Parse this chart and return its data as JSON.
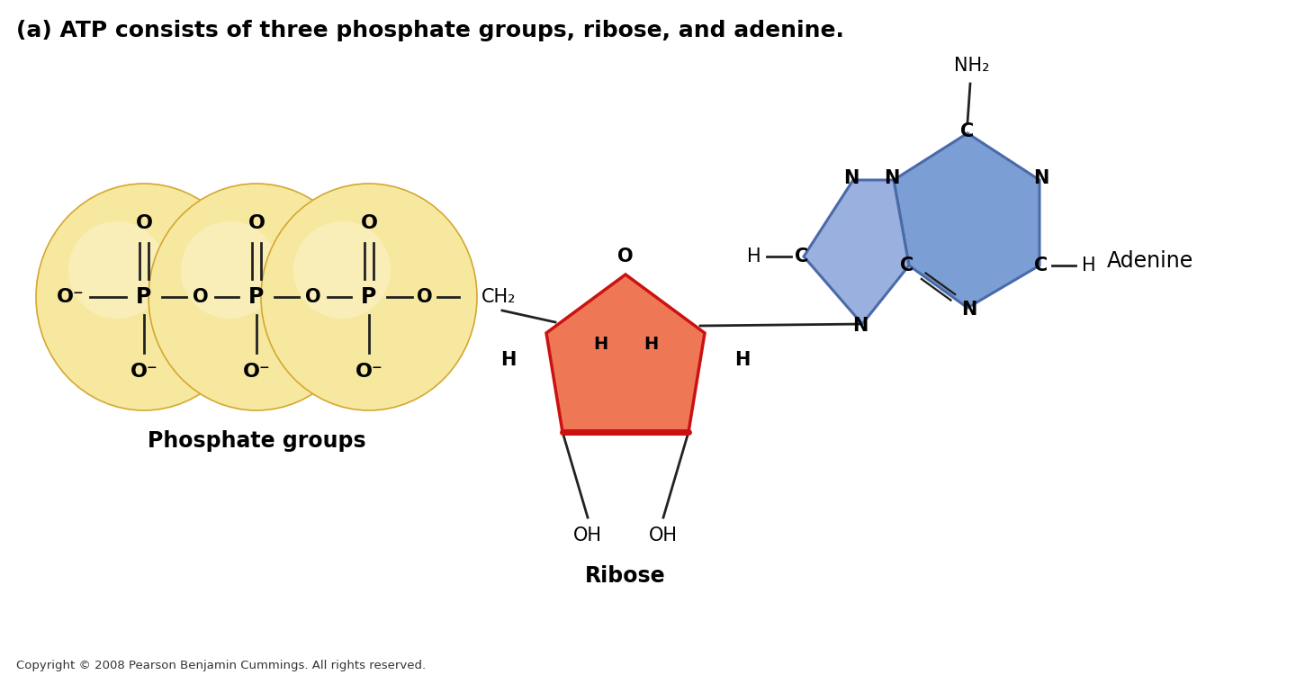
{
  "title": "(a) ATP consists of three phosphate groups, ribose, and adenine.",
  "title_fontsize": 18,
  "title_fontweight": "bold",
  "bg_color": "#ffffff",
  "phosphate_circle_color_outer": "#f7e8a0",
  "phosphate_circle_color_inner": "#f5d060",
  "phosphate_circle_edge": "#d4a830",
  "ribose_fill_top": "#ee7755",
  "ribose_fill_bottom": "#cc1111",
  "adenine_fill_hex": "#7b9fd4",
  "adenine_fill_pent": "#9ab0de",
  "adenine_edge": "#4a6aaa",
  "bond_color": "#222222",
  "text_color": "#000000",
  "label_phosphate": "Phosphate groups",
  "label_ribose": "Ribose",
  "label_adenine": "Adenine",
  "copyright": "Copyright © 2008 Pearson Benjamin Cummings. All rights reserved.",
  "copyright_fontsize": 9.5,
  "figsize": [
    14.4,
    7.6
  ],
  "dpi": 100
}
